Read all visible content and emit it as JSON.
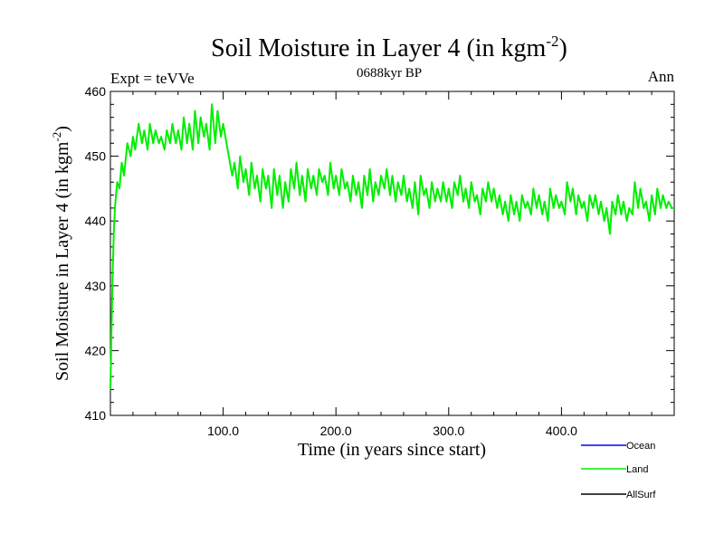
{
  "chart_data": {
    "type": "line",
    "title": "Soil Moisture in Layer 4 (in kgm",
    "title_sup": "-2",
    "title_close": ")",
    "subtitle_left": "Expt = teVVe",
    "subtitle_center": "0688kyr BP",
    "subtitle_right": "Ann",
    "xlabel": "Time (in years since start)",
    "ylabel": "Soil Moisture in Layer 4 (in kgm",
    "ylabel_sup": "-2",
    "ylabel_close": ")",
    "xlim": [
      0,
      500
    ],
    "ylim": [
      410,
      460
    ],
    "x_ticks": [
      100,
      200,
      300,
      400
    ],
    "x_tick_labels": [
      "100.0",
      "200.0",
      "300.0",
      "400.0"
    ],
    "y_ticks": [
      410,
      420,
      430,
      440,
      450,
      460
    ],
    "y_tick_labels": [
      "410",
      "420",
      "430",
      "440",
      "450",
      "460"
    ],
    "grid": false,
    "legend_placement": "bottom-right",
    "series": [
      {
        "name": "Ocean",
        "color": "#0000ff",
        "x": [],
        "y": []
      },
      {
        "name": "Land",
        "color": "#00ee00",
        "x": [
          0,
          1,
          2,
          3,
          4,
          5,
          6,
          8,
          10,
          12,
          15,
          18,
          20,
          22,
          25,
          28,
          30,
          33,
          35,
          38,
          40,
          43,
          45,
          48,
          50,
          53,
          55,
          58,
          60,
          63,
          65,
          68,
          70,
          73,
          75,
          78,
          80,
          83,
          85,
          88,
          90,
          93,
          95,
          98,
          100,
          103,
          105,
          108,
          110,
          113,
          115,
          118,
          120,
          123,
          125,
          128,
          130,
          133,
          135,
          138,
          140,
          143,
          145,
          148,
          150,
          153,
          155,
          158,
          160,
          163,
          165,
          168,
          170,
          173,
          175,
          178,
          180,
          183,
          185,
          188,
          190,
          193,
          195,
          198,
          200,
          203,
          205,
          208,
          210,
          213,
          215,
          218,
          220,
          223,
          225,
          228,
          230,
          233,
          235,
          238,
          240,
          243,
          245,
          248,
          250,
          253,
          255,
          258,
          260,
          263,
          265,
          268,
          270,
          273,
          275,
          278,
          280,
          283,
          285,
          288,
          290,
          293,
          295,
          298,
          300,
          303,
          305,
          308,
          310,
          313,
          315,
          318,
          320,
          323,
          325,
          328,
          330,
          333,
          335,
          338,
          340,
          343,
          345,
          348,
          350,
          353,
          355,
          358,
          360,
          363,
          365,
          368,
          370,
          373,
          375,
          378,
          380,
          383,
          385,
          388,
          390,
          393,
          395,
          398,
          400,
          403,
          405,
          408,
          410,
          413,
          415,
          418,
          420,
          423,
          425,
          428,
          430,
          433,
          435,
          438,
          440,
          443,
          445,
          448,
          450,
          453,
          455,
          458,
          460,
          463,
          465,
          468,
          470,
          473,
          475,
          478,
          480,
          483,
          485,
          488,
          490,
          493,
          495,
          498,
          500
        ],
        "y": [
          414,
          423,
          432,
          438,
          442,
          444,
          446,
          445,
          449,
          447,
          452,
          450,
          453,
          451,
          455,
          452,
          454,
          451,
          455,
          452,
          454,
          452,
          453,
          451,
          454,
          452,
          455,
          452,
          454,
          451,
          456,
          452,
          455,
          451,
          457,
          452,
          456,
          453,
          455,
          451,
          458,
          452,
          457,
          453,
          455,
          452,
          450,
          447,
          449,
          445,
          450,
          446,
          448,
          444,
          449,
          445,
          447,
          443,
          448,
          445,
          447,
          442,
          448,
          444,
          447,
          442,
          446,
          443,
          448,
          445,
          449,
          444,
          447,
          443,
          448,
          445,
          447,
          444,
          448,
          446,
          447,
          444,
          449,
          445,
          447,
          444,
          448,
          445,
          446,
          443,
          447,
          444,
          446,
          442,
          447,
          444,
          448,
          443,
          446,
          444,
          447,
          445,
          448,
          444,
          447,
          443,
          446,
          444,
          447,
          443,
          445,
          442,
          446,
          441,
          447,
          444,
          445,
          442,
          446,
          443,
          445,
          443,
          446,
          443,
          445,
          442,
          446,
          444,
          447,
          443,
          445,
          442,
          446,
          443,
          444,
          441,
          445,
          443,
          446,
          443,
          445,
          442,
          444,
          441,
          443,
          440,
          444,
          441,
          443,
          440,
          444,
          442,
          443,
          441,
          445,
          442,
          444,
          441,
          443,
          440,
          445,
          442,
          444,
          442,
          443,
          441,
          446,
          443,
          445,
          441,
          444,
          442,
          443,
          440,
          444,
          442,
          444,
          441,
          443,
          440,
          442,
          438,
          443,
          441,
          444,
          441,
          443,
          440,
          442,
          441,
          446,
          442,
          445,
          442,
          443,
          440,
          444,
          441,
          445,
          442,
          444,
          442,
          443,
          442,
          442
        ]
      },
      {
        "name": "AllSurf",
        "color": "#000000",
        "x": [],
        "y": []
      }
    ]
  }
}
